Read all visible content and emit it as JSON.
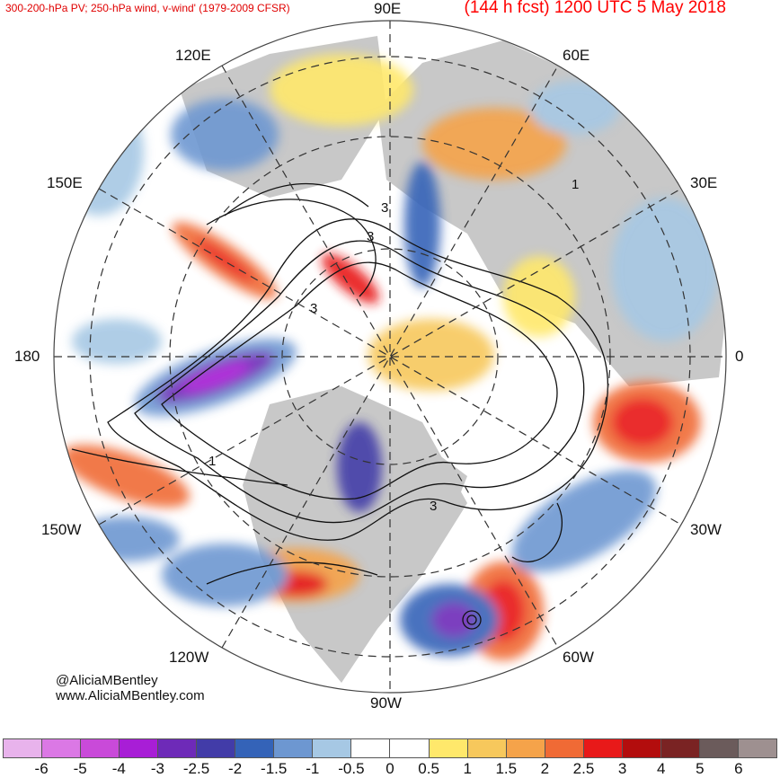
{
  "header": {
    "left_title": "300-200-hPa PV; 250-hPa wind, v-wind' (1979-2009 CFSR)",
    "right_title": "(144 h fcst) 1200 UTC 5 May 2018"
  },
  "map": {
    "projection": "north-polar-stereographic",
    "longitude_labels": [
      {
        "key": "lon_90e",
        "text": "90E"
      },
      {
        "key": "lon_60e",
        "text": "60E"
      },
      {
        "key": "lon_120e",
        "text": "120E"
      },
      {
        "key": "lon_150e",
        "text": "150E"
      },
      {
        "key": "lon_30e",
        "text": "30E"
      },
      {
        "key": "lon_180",
        "text": "180"
      },
      {
        "key": "lon_0",
        "text": "0"
      },
      {
        "key": "lon_150w",
        "text": "150W"
      },
      {
        "key": "lon_30w",
        "text": "30W"
      },
      {
        "key": "lon_120w",
        "text": "120W"
      },
      {
        "key": "lon_60w",
        "text": "60W"
      },
      {
        "key": "lon_90w",
        "text": "90W"
      }
    ],
    "contour_labels": [
      "3",
      "3",
      "3",
      "1",
      "1",
      "3"
    ],
    "colors": {
      "land": "#c8c8c8",
      "ocean": "#ffffff",
      "contour": "#111111"
    }
  },
  "credit": {
    "handle": "@AliciaMBentley",
    "website": "www.AliciaMBentley.com"
  },
  "colorbar": {
    "colors": [
      "#e8b3ec",
      "#db78e5",
      "#c94ad9",
      "#a81ed6",
      "#6e2ab8",
      "#423ca8",
      "#3463b8",
      "#6d97d1",
      "#a6c8e4",
      "#ffffff",
      "#ffffff",
      "#ffe86b",
      "#f7c85c",
      "#f5a34a",
      "#f06a35",
      "#e81919",
      "#b30d0d",
      "#7a2323",
      "#6b5b5b",
      "#9e9090"
    ],
    "ticks": [
      "-6",
      "-5",
      "-4",
      "-3",
      "-2.5",
      "-2",
      "-1.5",
      "-1",
      "-0.5",
      "0",
      "0.5",
      "1",
      "1.5",
      "2",
      "2.5",
      "3",
      "4",
      "5",
      "6"
    ]
  }
}
